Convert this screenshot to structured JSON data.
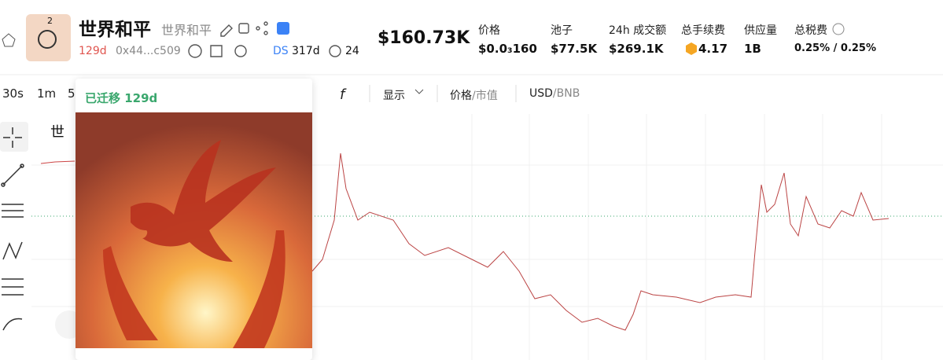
{
  "header": {
    "token_name": "世界和平",
    "token_subtitle": "世界和平",
    "badge": "2",
    "age": "129d",
    "address": "0x44...c509",
    "ds_label": "DS",
    "ds_age": "317d",
    "views": "24",
    "market_cap": "$160.73K",
    "stats": [
      {
        "label": "价格",
        "value": "$0.0₃160"
      },
      {
        "label": "池子",
        "value": "$77.5K"
      },
      {
        "label": "24h 成交额",
        "value": "$269.1K"
      },
      {
        "label": "总手续费",
        "value": "4.17"
      },
      {
        "label": "供应量",
        "value": "1B"
      },
      {
        "label": "总税费",
        "value": "0.25% / 0.25%"
      }
    ]
  },
  "toolbar": {
    "intervals": [
      "30s",
      "1m",
      "5"
    ],
    "display": "显示",
    "separator": "/",
    "price_toggle": {
      "active": "价格",
      "inactive": "市值"
    },
    "currency_toggle": {
      "active": "USD",
      "inactive": "BNB"
    }
  },
  "chart": {
    "label": "世"
  },
  "popup": {
    "status": "已迁移 129d"
  }
}
